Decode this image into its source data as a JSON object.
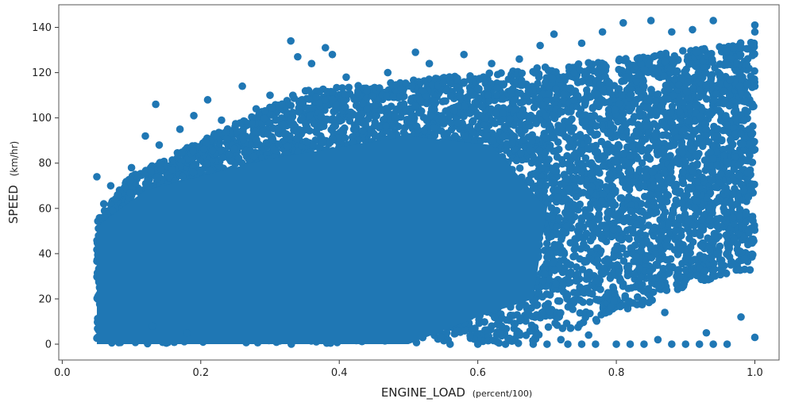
{
  "chart_data": {
    "type": "scatter",
    "title": "",
    "xlabel": "ENGINE_LOAD",
    "xlabel_unit": "(percent/100)",
    "ylabel": "SPEED",
    "ylabel_unit": "(km/hr)",
    "xlim": [
      -0.005,
      1.035
    ],
    "ylim": [
      -7,
      150
    ],
    "x_ticks": [
      0.0,
      0.2,
      0.4,
      0.6,
      0.8,
      1.0
    ],
    "x_tick_labels": [
      "0.0",
      "0.2",
      "0.4",
      "0.6",
      "0.8",
      "1.0"
    ],
    "y_ticks": [
      0,
      20,
      40,
      60,
      80,
      100,
      120,
      140
    ],
    "y_tick_labels": [
      "0",
      "20",
      "40",
      "60",
      "80",
      "100",
      "120",
      "140"
    ],
    "grid": false,
    "legend": "none",
    "marker_color": "#1f77b4",
    "series": [
      {
        "points": [
          {
            "x": 0.05,
            "y": 74
          },
          {
            "x": 0.06,
            "y": 62
          },
          {
            "x": 0.07,
            "y": 70
          },
          {
            "x": 0.08,
            "y": 66
          },
          {
            "x": 0.1,
            "y": 78
          },
          {
            "x": 0.12,
            "y": 92
          },
          {
            "x": 0.135,
            "y": 106
          },
          {
            "x": 0.14,
            "y": 88
          },
          {
            "x": 0.17,
            "y": 95
          },
          {
            "x": 0.19,
            "y": 101
          },
          {
            "x": 0.21,
            "y": 108
          },
          {
            "x": 0.23,
            "y": 99
          },
          {
            "x": 0.26,
            "y": 114
          },
          {
            "x": 0.28,
            "y": 104
          },
          {
            "x": 0.3,
            "y": 110
          },
          {
            "x": 0.33,
            "y": 134
          },
          {
            "x": 0.34,
            "y": 127
          },
          {
            "x": 0.36,
            "y": 124
          },
          {
            "x": 0.38,
            "y": 131
          },
          {
            "x": 0.39,
            "y": 128
          },
          {
            "x": 0.41,
            "y": 118
          },
          {
            "x": 0.44,
            "y": 112
          },
          {
            "x": 0.47,
            "y": 120
          },
          {
            "x": 0.51,
            "y": 129
          },
          {
            "x": 0.53,
            "y": 124
          },
          {
            "x": 0.58,
            "y": 128
          },
          {
            "x": 0.62,
            "y": 124
          },
          {
            "x": 0.66,
            "y": 126
          },
          {
            "x": 0.69,
            "y": 132
          },
          {
            "x": 0.71,
            "y": 137
          },
          {
            "x": 0.75,
            "y": 133
          },
          {
            "x": 0.78,
            "y": 138
          },
          {
            "x": 0.81,
            "y": 142
          },
          {
            "x": 0.85,
            "y": 143
          },
          {
            "x": 0.88,
            "y": 138
          },
          {
            "x": 0.91,
            "y": 139
          },
          {
            "x": 0.94,
            "y": 143
          },
          {
            "x": 0.97,
            "y": 131
          },
          {
            "x": 1.0,
            "y": 141
          },
          {
            "x": 1.0,
            "y": 138
          },
          {
            "x": 0.95,
            "y": 115
          },
          {
            "x": 1.0,
            "y": 114
          },
          {
            "x": 0.98,
            "y": 93
          },
          {
            "x": 1.0,
            "y": 86
          },
          {
            "x": 0.13,
            "y": 8
          },
          {
            "x": 0.18,
            "y": 5
          },
          {
            "x": 0.57,
            "y": 6
          },
          {
            "x": 0.62,
            "y": 8
          },
          {
            "x": 0.66,
            "y": 5
          },
          {
            "x": 0.72,
            "y": 2
          },
          {
            "x": 0.76,
            "y": 4
          },
          {
            "x": 0.86,
            "y": 2
          },
          {
            "x": 0.93,
            "y": 5
          },
          {
            "x": 1.0,
            "y": 3
          },
          {
            "x": 0.98,
            "y": 12
          },
          {
            "x": 0.87,
            "y": 14
          },
          {
            "x": 0.7,
            "y": 0
          },
          {
            "x": 0.73,
            "y": 0
          },
          {
            "x": 0.75,
            "y": 0
          },
          {
            "x": 0.77,
            "y": 0
          },
          {
            "x": 0.8,
            "y": 0
          },
          {
            "x": 0.82,
            "y": 0
          },
          {
            "x": 0.84,
            "y": 0
          },
          {
            "x": 0.88,
            "y": 0
          },
          {
            "x": 0.9,
            "y": 0
          },
          {
            "x": 0.92,
            "y": 0
          },
          {
            "x": 0.94,
            "y": 0
          },
          {
            "x": 0.96,
            "y": 0
          },
          {
            "x": 0.64,
            "y": 0
          },
          {
            "x": 0.68,
            "y": 0
          },
          {
            "x": 0.56,
            "y": 0
          },
          {
            "x": 0.6,
            "y": 0
          }
        ]
      }
    ]
  }
}
